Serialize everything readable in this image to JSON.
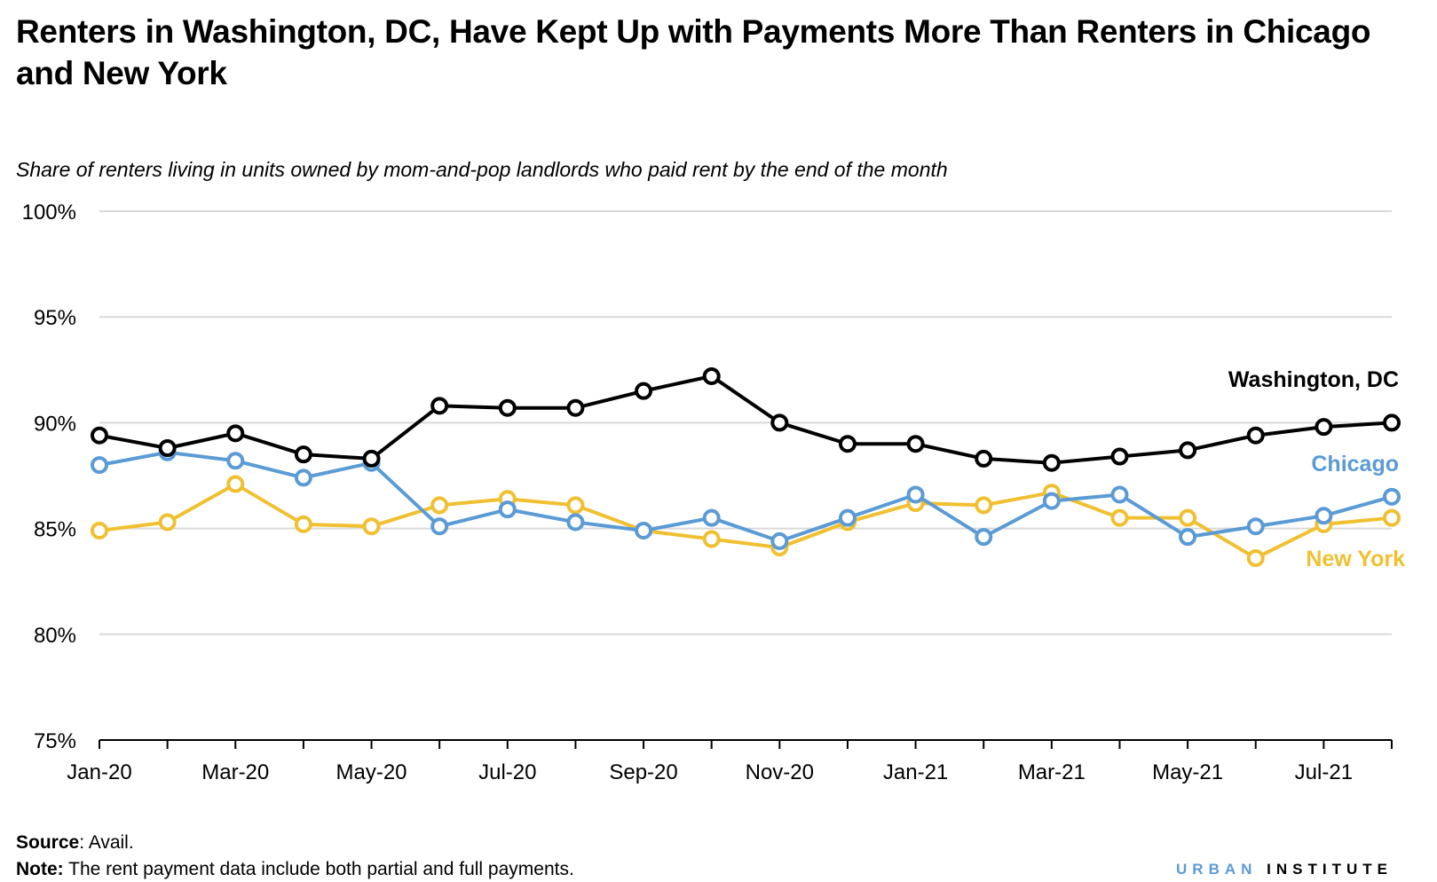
{
  "title": "Renters in Washington, DC, Have Kept Up with Payments More Than Renters in Chicago and New York",
  "subtitle": "Share of renters living in units owned by mom-and-pop landlords who paid rent by the end of the month",
  "source_label": "Source",
  "source_text": ": Avail.",
  "note_label": "Note:",
  "note_text": " The rent payment data include both partial and full payments.",
  "brand": {
    "part1": "URBAN",
    "part2": "INSTITUTE"
  },
  "colors": {
    "dc": "#000000",
    "chicago": "#5b9bd5",
    "newyork": "#f0c030",
    "grid": "#d9d9d9"
  },
  "chart_data": {
    "type": "line",
    "title": "Renters in Washington, DC, Have Kept Up with Payments More Than Renters in Chicago and New York",
    "subtitle": "Share of renters living in units owned by mom-and-pop landlords who paid rent by the end of the month",
    "xlabel": "",
    "ylabel": "",
    "ylim": [
      75,
      100
    ],
    "yticks": [
      "75%",
      "80%",
      "85%",
      "90%",
      "95%",
      "100%"
    ],
    "ytick_values": [
      75,
      80,
      85,
      90,
      95,
      100
    ],
    "categories": [
      "Jan-20",
      "Feb-20",
      "Mar-20",
      "Apr-20",
      "May-20",
      "Jun-20",
      "Jul-20",
      "Aug-20",
      "Sep-20",
      "Oct-20",
      "Nov-20",
      "Dec-20",
      "Jan-21",
      "Feb-21",
      "Mar-21",
      "Apr-21",
      "May-21",
      "Jun-21",
      "Jul-21",
      "Aug-21"
    ],
    "xtick_labels": [
      "Jan-20",
      "Mar-20",
      "May-20",
      "Jul-20",
      "Sep-20",
      "Nov-20",
      "Jan-21",
      "Mar-21",
      "May-21",
      "Jul-21"
    ],
    "grid": true,
    "series": [
      {
        "name": "Washington, DC",
        "key": "dc",
        "values": [
          89.4,
          88.8,
          89.5,
          88.5,
          88.3,
          90.8,
          90.7,
          90.7,
          91.5,
          92.2,
          90.0,
          89.0,
          89.0,
          88.3,
          88.1,
          88.4,
          88.7,
          89.4,
          89.8,
          90.0
        ]
      },
      {
        "name": "Chicago",
        "key": "chicago",
        "values": [
          88.0,
          88.6,
          88.2,
          87.4,
          88.1,
          85.1,
          85.9,
          85.3,
          84.9,
          85.5,
          84.4,
          85.5,
          86.6,
          84.6,
          86.3,
          86.6,
          84.6,
          85.1,
          85.6,
          86.5
        ]
      },
      {
        "name": "New York",
        "key": "newyork",
        "values": [
          84.9,
          85.3,
          87.1,
          85.2,
          85.1,
          86.1,
          86.4,
          86.1,
          84.9,
          84.5,
          84.1,
          85.3,
          86.2,
          86.1,
          86.7,
          85.5,
          85.5,
          83.6,
          85.2,
          85.5
        ]
      }
    ]
  }
}
